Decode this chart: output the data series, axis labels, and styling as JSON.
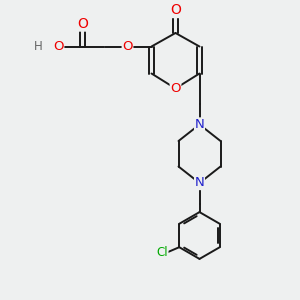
{
  "bg_color": "#eef0f0",
  "bond_color": "#1a1a1a",
  "bond_width": 1.4,
  "atom_colors": {
    "O": "#ee0000",
    "N": "#2222cc",
    "Cl": "#00aa00",
    "H": "#666666",
    "C": "#1a1a1a"
  },
  "font_size": 8.5,
  "fig_width": 3.0,
  "fig_height": 3.0,
  "dpi": 100
}
